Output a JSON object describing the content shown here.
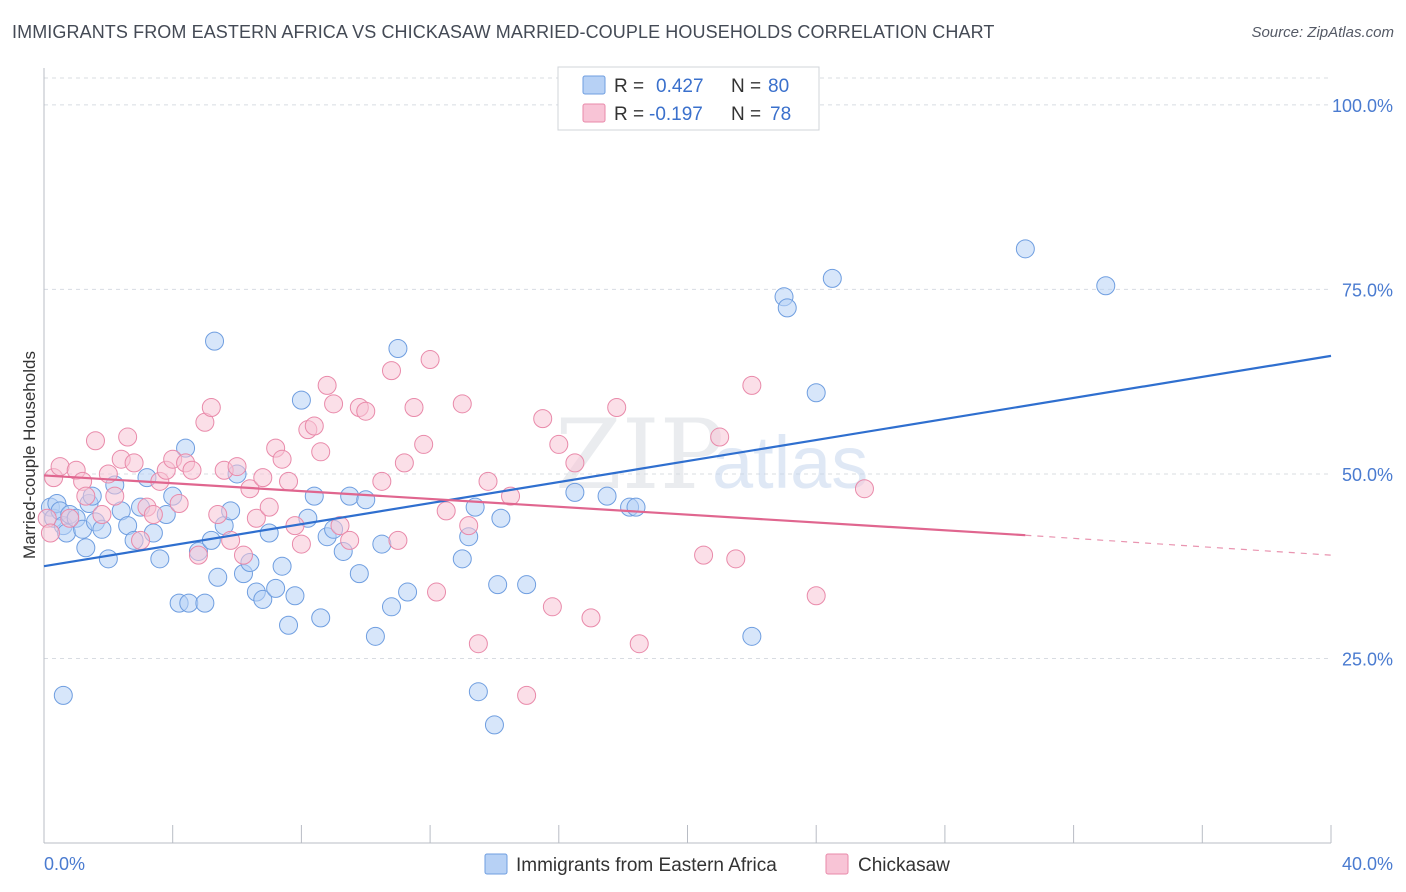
{
  "title": "IMMIGRANTS FROM EASTERN AFRICA VS CHICKASAW MARRIED-COUPLE HOUSEHOLDS CORRELATION CHART",
  "source": "Source: ZipAtlas.com",
  "watermark": {
    "zip": "ZIP",
    "atlas": "atlas"
  },
  "colors": {
    "blue_fill": "#b7d1f5",
    "blue_stroke": "#6f9ee0",
    "blue_line": "#2f6fcf",
    "pink_fill": "#f8c4d6",
    "pink_stroke": "#e98aaa",
    "pink_line": "#e0668f",
    "tick_text": "#4a7bd0",
    "grid": "#d8dce2"
  },
  "legend": {
    "rows": [
      {
        "r_label": "R =",
        "r_value": "0.427",
        "n_label": "N =",
        "n_value": "80"
      },
      {
        "r_label": "R =",
        "r_value": "-0.197",
        "n_label": "N =",
        "n_value": "78"
      }
    ]
  },
  "chart_data": {
    "type": "scatter",
    "title": "IMMIGRANTS FROM EASTERN AFRICA VS CHICKASAW MARRIED-COUPLE HOUSEHOLDS CORRELATION CHART",
    "xlabel": "",
    "ylabel": "Married-couple Households",
    "xlim": [
      0,
      40
    ],
    "ylim": [
      0,
      105
    ],
    "x_tick_labels": [
      "0.0%",
      "40.0%"
    ],
    "y_ticks": [
      25,
      50,
      75,
      100
    ],
    "y_tick_labels": [
      "25.0%",
      "50.0%",
      "75.0%",
      "100.0%"
    ],
    "grid": "horizontal dashed",
    "legend_position": "top-center",
    "series": [
      {
        "name": "Immigrants from Eastern Africa",
        "color": "#6f9ee0",
        "points": [
          [
            0.2,
            45.5
          ],
          [
            0.3,
            44
          ],
          [
            0.4,
            46
          ],
          [
            0.5,
            45
          ],
          [
            0.6,
            43
          ],
          [
            0.7,
            42
          ],
          [
            0.8,
            44.5
          ],
          [
            1.0,
            44
          ],
          [
            1.2,
            42.5
          ],
          [
            1.4,
            46
          ],
          [
            1.6,
            43.5
          ],
          [
            1.8,
            42.5
          ],
          [
            2.0,
            38.5
          ],
          [
            2.2,
            48.5
          ],
          [
            2.4,
            45
          ],
          [
            2.6,
            43
          ],
          [
            2.8,
            41
          ],
          [
            3.0,
            45.5
          ],
          [
            3.2,
            49.5
          ],
          [
            3.4,
            42
          ],
          [
            3.6,
            38.5
          ],
          [
            3.8,
            44.5
          ],
          [
            4.0,
            47
          ],
          [
            4.2,
            32.5
          ],
          [
            4.4,
            53.5
          ],
          [
            4.5,
            32.5
          ],
          [
            4.8,
            39.5
          ],
          [
            5.0,
            32.5
          ],
          [
            5.2,
            41
          ],
          [
            5.4,
            36
          ],
          [
            5.6,
            43
          ],
          [
            5.8,
            45
          ],
          [
            6.0,
            50
          ],
          [
            6.2,
            36.5
          ],
          [
            6.4,
            38
          ],
          [
            6.6,
            34
          ],
          [
            6.8,
            33
          ],
          [
            7.0,
            42
          ],
          [
            7.2,
            34.5
          ],
          [
            7.4,
            37.5
          ],
          [
            7.6,
            29.5
          ],
          [
            7.8,
            33.5
          ],
          [
            8.0,
            60
          ],
          [
            8.2,
            44
          ],
          [
            8.4,
            47
          ],
          [
            8.6,
            30.5
          ],
          [
            8.8,
            41.5
          ],
          [
            9.0,
            42.5
          ],
          [
            9.3,
            39.5
          ],
          [
            9.5,
            47
          ],
          [
            9.8,
            36.5
          ],
          [
            10.0,
            46.5
          ],
          [
            10.3,
            28
          ],
          [
            10.5,
            40.5
          ],
          [
            10.8,
            32
          ],
          [
            11.0,
            67
          ],
          [
            11.3,
            34
          ],
          [
            13.0,
            38.5
          ],
          [
            13.2,
            41.5
          ],
          [
            13.4,
            45.5
          ],
          [
            13.5,
            20.5
          ],
          [
            14.0,
            16
          ],
          [
            14.1,
            35
          ],
          [
            14.2,
            44
          ],
          [
            15.0,
            35
          ],
          [
            16.5,
            47.5
          ],
          [
            17.5,
            47
          ],
          [
            18.2,
            45.5
          ],
          [
            18.4,
            45.5
          ],
          [
            22.0,
            28
          ],
          [
            23.0,
            74
          ],
          [
            23.1,
            72.5
          ],
          [
            24.0,
            61
          ],
          [
            24.5,
            76.5
          ],
          [
            30.5,
            80.5
          ],
          [
            33.0,
            75.5
          ],
          [
            0.6,
            20
          ],
          [
            1.3,
            40
          ],
          [
            5.3,
            68
          ],
          [
            1.5,
            47
          ]
        ]
      },
      {
        "name": "Chickasaw",
        "color": "#e98aaa",
        "points": [
          [
            0.1,
            44
          ],
          [
            0.2,
            42
          ],
          [
            0.3,
            49.5
          ],
          [
            0.5,
            51
          ],
          [
            0.8,
            44
          ],
          [
            1.0,
            50.5
          ],
          [
            1.2,
            49
          ],
          [
            1.3,
            47
          ],
          [
            1.6,
            54.5
          ],
          [
            1.8,
            44.5
          ],
          [
            2.0,
            50
          ],
          [
            2.2,
            47
          ],
          [
            2.4,
            52
          ],
          [
            2.6,
            55
          ],
          [
            2.8,
            51.5
          ],
          [
            3.0,
            41
          ],
          [
            3.2,
            45.5
          ],
          [
            3.4,
            44.5
          ],
          [
            3.6,
            49
          ],
          [
            3.8,
            50.5
          ],
          [
            4.0,
            52
          ],
          [
            4.2,
            46
          ],
          [
            4.4,
            51.5
          ],
          [
            4.6,
            50.5
          ],
          [
            4.8,
            39
          ],
          [
            5.0,
            57
          ],
          [
            5.2,
            59
          ],
          [
            5.4,
            44.5
          ],
          [
            5.6,
            50.5
          ],
          [
            5.8,
            41
          ],
          [
            6.0,
            51
          ],
          [
            6.2,
            39
          ],
          [
            6.4,
            48
          ],
          [
            6.6,
            44
          ],
          [
            6.8,
            49.5
          ],
          [
            7.0,
            45.5
          ],
          [
            7.2,
            53.5
          ],
          [
            7.4,
            52
          ],
          [
            7.6,
            49
          ],
          [
            7.8,
            43
          ],
          [
            8.0,
            40.5
          ],
          [
            8.2,
            56
          ],
          [
            8.4,
            56.5
          ],
          [
            8.6,
            53
          ],
          [
            8.8,
            62
          ],
          [
            9.0,
            59.5
          ],
          [
            9.2,
            43
          ],
          [
            9.5,
            41
          ],
          [
            9.8,
            59
          ],
          [
            10.0,
            58.5
          ],
          [
            10.5,
            49
          ],
          [
            10.8,
            64
          ],
          [
            11.0,
            41
          ],
          [
            11.2,
            51.5
          ],
          [
            11.5,
            59
          ],
          [
            11.8,
            54
          ],
          [
            12.0,
            65.5
          ],
          [
            12.2,
            34
          ],
          [
            12.5,
            45
          ],
          [
            13.0,
            59.5
          ],
          [
            13.2,
            43
          ],
          [
            13.5,
            27
          ],
          [
            13.8,
            49
          ],
          [
            14.5,
            47
          ],
          [
            15.0,
            20
          ],
          [
            15.5,
            57.5
          ],
          [
            15.8,
            32
          ],
          [
            16.0,
            54
          ],
          [
            16.5,
            51.5
          ],
          [
            17.0,
            30.5
          ],
          [
            17.8,
            59
          ],
          [
            18.5,
            27
          ],
          [
            20.5,
            39
          ],
          [
            21.0,
            55
          ],
          [
            21.5,
            38.5
          ],
          [
            22.0,
            62
          ],
          [
            24.0,
            33.5
          ],
          [
            25.5,
            48
          ]
        ]
      }
    ],
    "trend_lines": [
      {
        "series": "Immigrants from Eastern Africa",
        "x": [
          0,
          40
        ],
        "y": [
          37.5,
          66
        ]
      },
      {
        "series": "Chickasaw",
        "x": [
          0,
          30.5,
          40
        ],
        "y": [
          49.8,
          41.7,
          39
        ],
        "dashed_after": 30.5
      }
    ]
  },
  "bottom_legend": [
    {
      "label": "Immigrants from Eastern Africa"
    },
    {
      "label": "Chickasaw"
    }
  ]
}
